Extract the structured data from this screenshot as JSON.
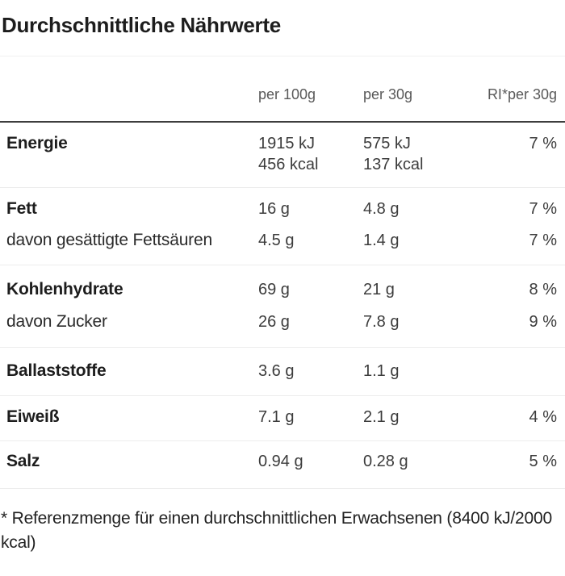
{
  "title": "Durchschnittliche Nährwerte",
  "table": {
    "columns": [
      "",
      "per 100g",
      "per 30g",
      "RI*per 30g"
    ],
    "rows": [
      {
        "label": "Energie",
        "per_100g_kj": "1915 kJ",
        "per_100g_kcal": "456 kcal",
        "per_30g_kj": "575 kJ",
        "per_30g_kcal": "137 kcal",
        "ri": "7 %"
      },
      {
        "label": "Fett",
        "per_100g": "16 g",
        "per_30g": "4.8 g",
        "ri": "7 %"
      },
      {
        "label": "davon gesättigte Fettsäuren",
        "per_100g": "4.5 g",
        "per_30g": "1.4 g",
        "ri": "7 %"
      },
      {
        "label": "Kohlenhydrate",
        "per_100g": "69 g",
        "per_30g": "21 g",
        "ri": "8 %"
      },
      {
        "label": "davon Zucker",
        "per_100g": "26 g",
        "per_30g": "7.8 g",
        "ri": "9 %"
      },
      {
        "label": "Ballaststoffe",
        "per_100g": "3.6 g",
        "per_30g": "1.1 g",
        "ri": ""
      },
      {
        "label": "Eiweiß",
        "per_100g": "7.1 g",
        "per_30g": "2.1 g",
        "ri": "4 %"
      },
      {
        "label": "Salz",
        "per_100g": "0.94 g",
        "per_30g": "0.28 g",
        "ri": "5 %"
      }
    ]
  },
  "footnote": "* Referenzmenge für einen durchschnittlichen Erwachsenen (8400 kJ/2000 kcal)",
  "colors": {
    "text_primary": "#1d1d1d",
    "text_secondary": "#3c3c3c",
    "text_header": "#595959",
    "divider_light": "#ececec",
    "divider_dark": "#3e3e3e",
    "background": "#ffffff"
  }
}
